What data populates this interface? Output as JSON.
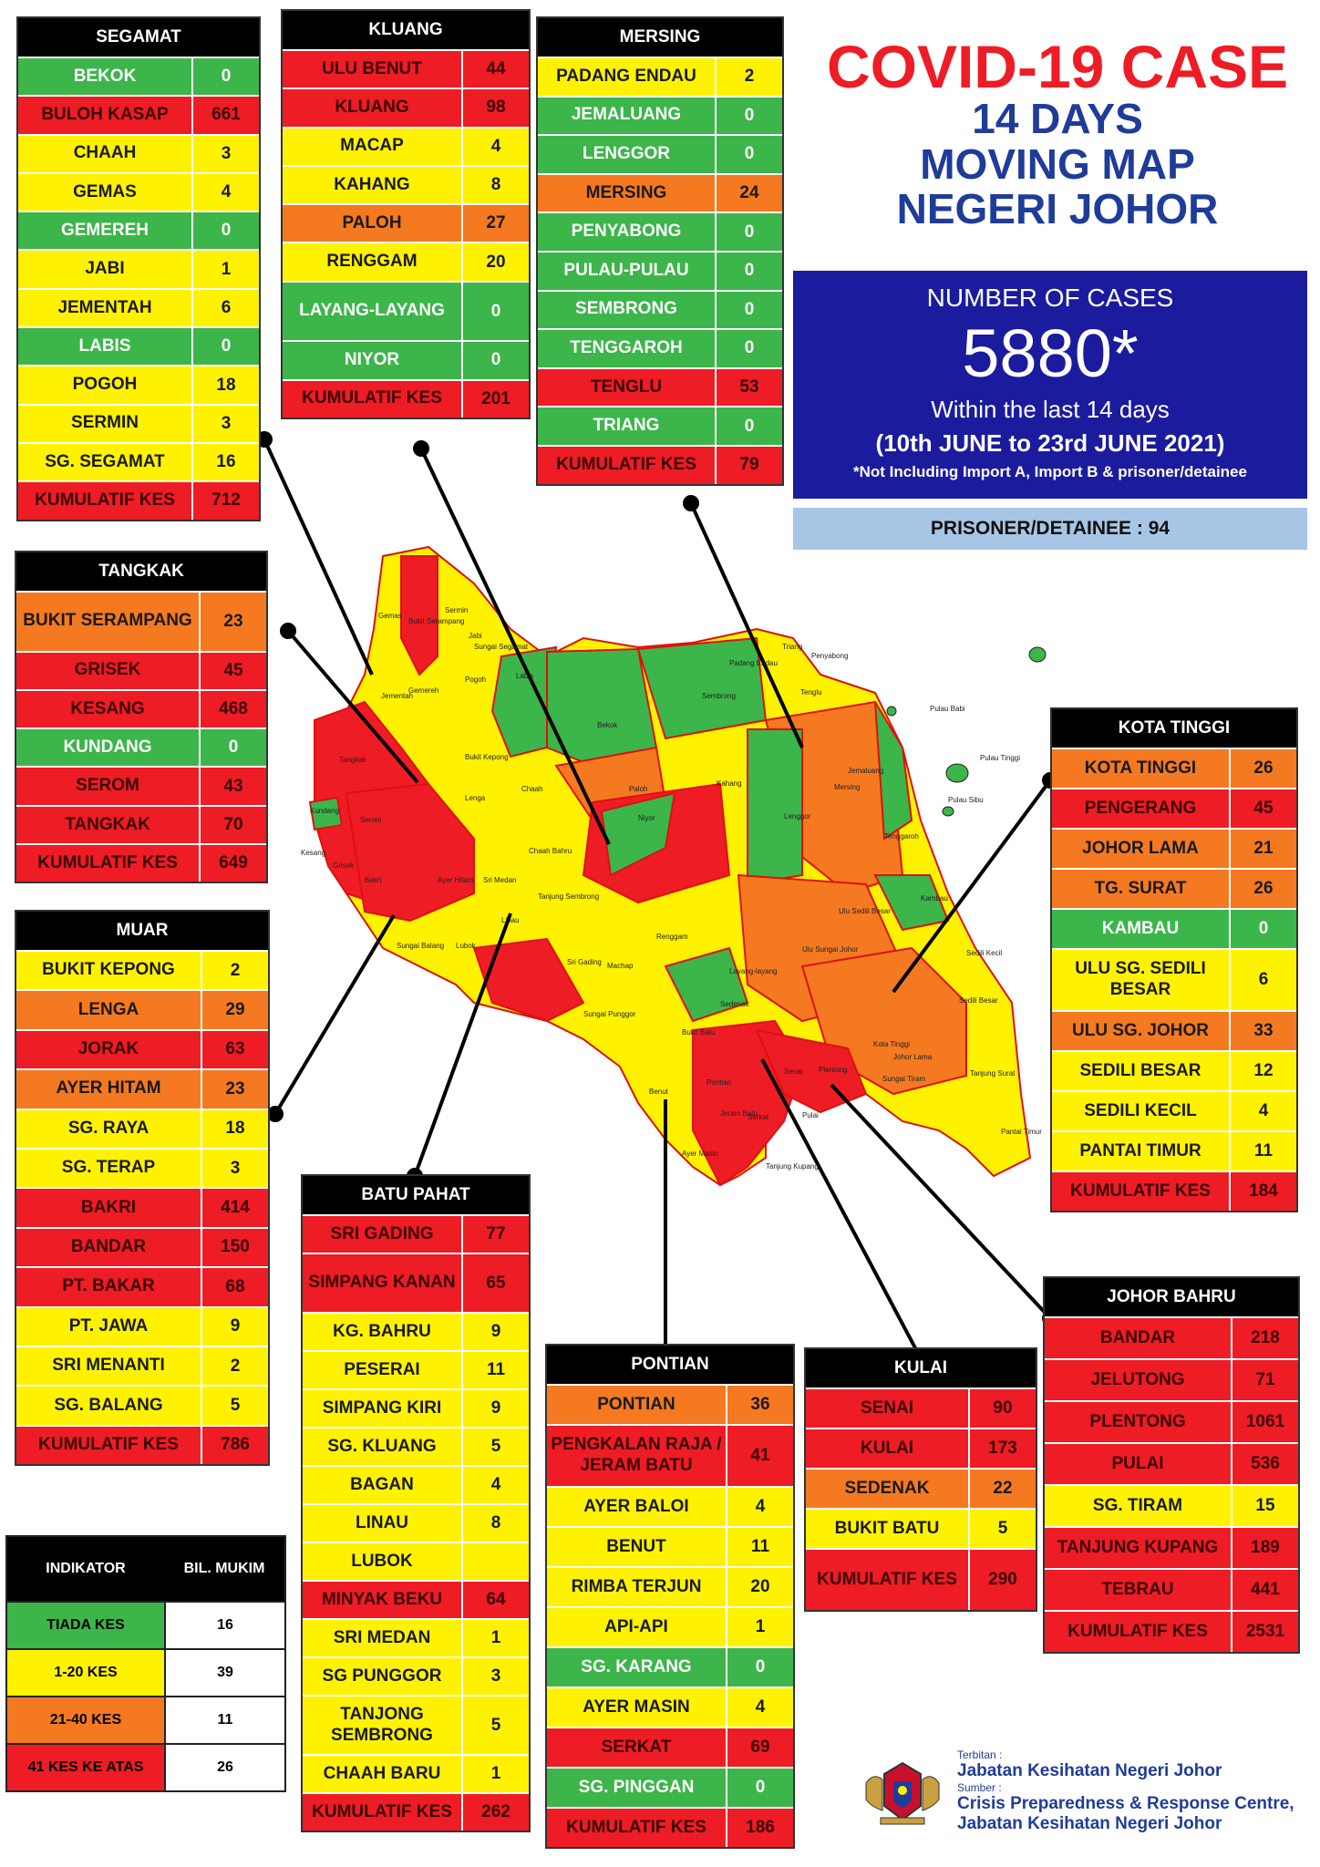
{
  "title": {
    "line1": "COVID-19 CASE",
    "line2": "14 DAYS",
    "line3": "MOVING MAP",
    "line4": "NEGERI JOHOR"
  },
  "cases": {
    "label": "NUMBER OF CASES",
    "number": "5880*",
    "window": "Within the last 14 days",
    "range": "(10th JUNE to 23rd JUNE 2021)",
    "note": "*Not Including Import A, Import B & prisoner/detainee",
    "prisoner": "PRISONER/DETAINEE : 94"
  },
  "colors": {
    "red": "#ee1c25",
    "yellow": "#fff200",
    "orange": "#f47920",
    "green": "#3cb54a",
    "title_red": "#ee1c25",
    "title_blue": "#1f3c99",
    "cases_box": "#1b1b9e"
  },
  "districts": [
    {
      "id": "segamat",
      "name": "SEGAMAT",
      "rows": [
        {
          "n": "BEKOK",
          "v": "0",
          "c": "green"
        },
        {
          "n": "BULOH KASAP",
          "v": "661",
          "c": "red"
        },
        {
          "n": "CHAAH",
          "v": "3",
          "c": "yellow"
        },
        {
          "n": "GEMAS",
          "v": "4",
          "c": "yellow"
        },
        {
          "n": "GEMEREH",
          "v": "0",
          "c": "green"
        },
        {
          "n": "JABI",
          "v": "1",
          "c": "yellow"
        },
        {
          "n": "JEMENTAH",
          "v": "6",
          "c": "yellow"
        },
        {
          "n": "LABIS",
          "v": "0",
          "c": "green"
        },
        {
          "n": "POGOH",
          "v": "18",
          "c": "yellow"
        },
        {
          "n": "SERMIN",
          "v": "3",
          "c": "yellow"
        },
        {
          "n": "SG. SEGAMAT",
          "v": "16",
          "c": "yellow"
        },
        {
          "n": "KUMULATIF KES",
          "v": "712",
          "c": "red",
          "total": true
        }
      ]
    },
    {
      "id": "kluang",
      "name": "KLUANG",
      "rows": [
        {
          "n": "ULU BENUT",
          "v": "44",
          "c": "red"
        },
        {
          "n": "KLUANG",
          "v": "98",
          "c": "red"
        },
        {
          "n": "MACAP",
          "v": "4",
          "c": "yellow"
        },
        {
          "n": "KAHANG",
          "v": "8",
          "c": "yellow"
        },
        {
          "n": "PALOH",
          "v": "27",
          "c": "orange"
        },
        {
          "n": "RENGGAM",
          "v": "20",
          "c": "yellow"
        },
        {
          "n": "LAYANG-LAYANG",
          "v": "0",
          "c": "green",
          "tall": true
        },
        {
          "n": "NIYOR",
          "v": "0",
          "c": "green"
        },
        {
          "n": "KUMULATIF KES",
          "v": "201",
          "c": "red",
          "total": true
        }
      ]
    },
    {
      "id": "mersing",
      "name": "MERSING",
      "rows": [
        {
          "n": "PADANG ENDAU",
          "v": "2",
          "c": "yellow"
        },
        {
          "n": "JEMALUANG",
          "v": "0",
          "c": "green"
        },
        {
          "n": "LENGGOR",
          "v": "0",
          "c": "green"
        },
        {
          "n": "MERSING",
          "v": "24",
          "c": "orange"
        },
        {
          "n": "PENYABONG",
          "v": "0",
          "c": "green"
        },
        {
          "n": "PULAU-PULAU",
          "v": "0",
          "c": "green"
        },
        {
          "n": "SEMBRONG",
          "v": "0",
          "c": "green"
        },
        {
          "n": "TENGGAROH",
          "v": "0",
          "c": "green"
        },
        {
          "n": "TENGLU",
          "v": "53",
          "c": "red"
        },
        {
          "n": "TRIANG",
          "v": "0",
          "c": "green"
        },
        {
          "n": "KUMULATIF KES",
          "v": "79",
          "c": "red",
          "total": true
        }
      ]
    },
    {
      "id": "tangkak",
      "name": "TANGKAK",
      "rows": [
        {
          "n": "BUKIT SERAMPANG",
          "v": "23",
          "c": "orange",
          "tall": true
        },
        {
          "n": "GRISEK",
          "v": "45",
          "c": "red"
        },
        {
          "n": "KESANG",
          "v": "468",
          "c": "red"
        },
        {
          "n": "KUNDANG",
          "v": "0",
          "c": "green"
        },
        {
          "n": "SEROM",
          "v": "43",
          "c": "red"
        },
        {
          "n": "TANGKAK",
          "v": "70",
          "c": "red"
        },
        {
          "n": "KUMULATIF KES",
          "v": "649",
          "c": "red",
          "total": true
        }
      ]
    },
    {
      "id": "muar",
      "name": "MUAR",
      "rows": [
        {
          "n": "BUKIT KEPONG",
          "v": "2",
          "c": "yellow"
        },
        {
          "n": "LENGA",
          "v": "29",
          "c": "orange"
        },
        {
          "n": "JORAK",
          "v": "63",
          "c": "red"
        },
        {
          "n": "AYER HITAM",
          "v": "23",
          "c": "orange"
        },
        {
          "n": "SG. RAYA",
          "v": "18",
          "c": "yellow"
        },
        {
          "n": "SG. TERAP",
          "v": "3",
          "c": "yellow"
        },
        {
          "n": "BAKRI",
          "v": "414",
          "c": "red"
        },
        {
          "n": "BANDAR",
          "v": "150",
          "c": "red"
        },
        {
          "n": "PT. BAKAR",
          "v": "68",
          "c": "red"
        },
        {
          "n": "PT. JAWA",
          "v": "9",
          "c": "yellow"
        },
        {
          "n": "SRI MENANTI",
          "v": "2",
          "c": "yellow"
        },
        {
          "n": "SG. BALANG",
          "v": "5",
          "c": "yellow"
        },
        {
          "n": "KUMULATIF KES",
          "v": "786",
          "c": "red",
          "total": true
        }
      ]
    },
    {
      "id": "kotatinggi",
      "name": "KOTA TINGGI",
      "rows": [
        {
          "n": "KOTA TINGGI",
          "v": "26",
          "c": "orange"
        },
        {
          "n": "PENGERANG",
          "v": "45",
          "c": "red"
        },
        {
          "n": "JOHOR LAMA",
          "v": "21",
          "c": "orange"
        },
        {
          "n": "TG. SURAT",
          "v": "26",
          "c": "orange"
        },
        {
          "n": "KAMBAU",
          "v": "0",
          "c": "green"
        },
        {
          "n": "ULU SG. SEDILI BESAR",
          "v": "6",
          "c": "yellow",
          "tall": true
        },
        {
          "n": "ULU  SG. JOHOR",
          "v": "33",
          "c": "orange"
        },
        {
          "n": "SEDILI BESAR",
          "v": "12",
          "c": "yellow"
        },
        {
          "n": "SEDILI KECIL",
          "v": "4",
          "c": "yellow"
        },
        {
          "n": "PANTAI TIMUR",
          "v": "11",
          "c": "yellow"
        },
        {
          "n": "KUMULATIF KES",
          "v": "184",
          "c": "red",
          "total": true
        }
      ]
    },
    {
      "id": "batupahat",
      "name": "BATU PAHAT",
      "rows": [
        {
          "n": "SRI GADING",
          "v": "77",
          "c": "red"
        },
        {
          "n": "SIMPANG KANAN",
          "v": "65",
          "c": "red",
          "tall": true
        },
        {
          "n": "KG. BAHRU",
          "v": "9",
          "c": "yellow"
        },
        {
          "n": "PESERAI",
          "v": "11",
          "c": "yellow"
        },
        {
          "n": "SIMPANG KIRI",
          "v": "9",
          "c": "yellow"
        },
        {
          "n": "SG. KLUANG",
          "v": "5",
          "c": "yellow"
        },
        {
          "n": "BAGAN",
          "v": "4",
          "c": "yellow"
        },
        {
          "n": "LINAU",
          "v": "8",
          "c": "yellow"
        },
        {
          "n": "LUBOK",
          "v": "",
          "c": "yellow"
        },
        {
          "n": "MINYAK BEKU",
          "v": "64",
          "c": "red"
        },
        {
          "n": "SRI MEDAN",
          "v": "1",
          "c": "yellow"
        },
        {
          "n": "SG PUNGGOR",
          "v": "3",
          "c": "yellow"
        },
        {
          "n": "TANJONG SEMBRONG",
          "v": "5",
          "c": "yellow",
          "tall": true
        },
        {
          "n": "CHAAH BARU",
          "v": "1",
          "c": "yellow"
        },
        {
          "n": "KUMULATIF KES",
          "v": "262",
          "c": "red",
          "total": true
        }
      ]
    },
    {
      "id": "pontian",
      "name": "PONTIAN",
      "rows": [
        {
          "n": "PONTIAN",
          "v": "36",
          "c": "orange"
        },
        {
          "n": "PENGKALAN RAJA / JERAM BATU",
          "v": "41",
          "c": "red",
          "tall": true
        },
        {
          "n": "AYER BALOI",
          "v": "4",
          "c": "yellow"
        },
        {
          "n": "BENUT",
          "v": "11",
          "c": "yellow"
        },
        {
          "n": "RIMBA TERJUN",
          "v": "20",
          "c": "yellow"
        },
        {
          "n": "API-API",
          "v": "1",
          "c": "yellow"
        },
        {
          "n": "SG. KARANG",
          "v": "0",
          "c": "green"
        },
        {
          "n": "AYER MASIN",
          "v": "4",
          "c": "yellow"
        },
        {
          "n": "SERKAT",
          "v": "69",
          "c": "red"
        },
        {
          "n": "SG. PINGGAN",
          "v": "0",
          "c": "green"
        },
        {
          "n": "KUMULATIF KES",
          "v": "186",
          "c": "red",
          "total": true
        }
      ]
    },
    {
      "id": "kulai",
      "name": "KULAI",
      "rows": [
        {
          "n": "SENAI",
          "v": "90",
          "c": "red"
        },
        {
          "n": "KULAI",
          "v": "173",
          "c": "red"
        },
        {
          "n": "SEDENAK",
          "v": "22",
          "c": "orange"
        },
        {
          "n": "BUKIT BATU",
          "v": "5",
          "c": "yellow"
        },
        {
          "n": "KUMULATIF KES",
          "v": "290",
          "c": "red",
          "total": true,
          "tall": true
        }
      ]
    },
    {
      "id": "johorbahru",
      "name": "JOHOR BAHRU",
      "rows": [
        {
          "n": "BANDAR",
          "v": "218",
          "c": "red"
        },
        {
          "n": "JELUTONG",
          "v": "71",
          "c": "red"
        },
        {
          "n": "PLENTONG",
          "v": "1061",
          "c": "red"
        },
        {
          "n": "PULAI",
          "v": "536",
          "c": "red"
        },
        {
          "n": "SG. TIRAM",
          "v": "15",
          "c": "yellow"
        },
        {
          "n": "TANJUNG KUPANG",
          "v": "189",
          "c": "red"
        },
        {
          "n": "TEBRAU",
          "v": "441",
          "c": "red"
        },
        {
          "n": "KUMULATIF KES",
          "v": "2531",
          "c": "red",
          "total": true
        }
      ]
    }
  ],
  "legend": {
    "header": [
      "INDIKATOR",
      "BIL. MUKIM"
    ],
    "rows": [
      {
        "label": "TIADA KES",
        "count": "16",
        "c": "green"
      },
      {
        "label": "1-20 KES",
        "count": "39",
        "c": "yellow"
      },
      {
        "label": "21-40 KES",
        "count": "11",
        "c": "orange"
      },
      {
        "label": "41 KES KE ATAS",
        "count": "26",
        "c": "red"
      }
    ]
  },
  "map_labels": [
    "Gemas",
    "Bukit Serampang",
    "Sermin",
    "Jabi",
    "Sungai Segamat",
    "Jementah",
    "Gemereh",
    "Pogoh",
    "Labis",
    "Bekok",
    "Sembrong",
    "Padang Endau",
    "Triang",
    "Penyabong",
    "Tenglu",
    "Pulau Babi",
    "Pulau Tinggi",
    "Pulau Sibu",
    "Kundang",
    "Tangkak",
    "Serom",
    "Kesang",
    "Grisek",
    "Bukit Kepong",
    "Lenga",
    "Chaah",
    "Paloh",
    "Kahang",
    "Jemaluang",
    "Mersing",
    "Lenggor",
    "Tenggaroh",
    "Niyor",
    "Chaah Bahru",
    "Sri Medan",
    "Bakri",
    "Ayer Hitam",
    "Tanjung Sembrong",
    "Renggam",
    "Ulu Sedili Besar",
    "Kambau",
    "Sedili Besar",
    "Ulu Sungai Johor",
    "Kota Tinggi",
    "Sedili Kecil",
    "Layang-layang",
    "Machap",
    "Sedenak",
    "Johor Lama",
    "Tanjung Surat",
    "Bukit Batu",
    "Sungai Tiram",
    "Pantai Timur",
    "Pontian",
    "Serkat",
    "Tanjung Kupang",
    "Ayer Masin",
    "Jeram Batu",
    "Benut",
    "Linau",
    "Sungai Balang",
    "Lubok",
    "Sri Gading",
    "Sungai Punggor",
    "Pulai",
    "Senai",
    "Plentong"
  ],
  "credits": {
    "published_label": "Terbitan :",
    "publisher": "Jabatan Kesihatan Negeri Johor",
    "source_label": "Sumber :",
    "source1": "Crisis Preparedness & Response Centre,",
    "source2": "Jabatan Kesihatan Negeri Johor"
  }
}
